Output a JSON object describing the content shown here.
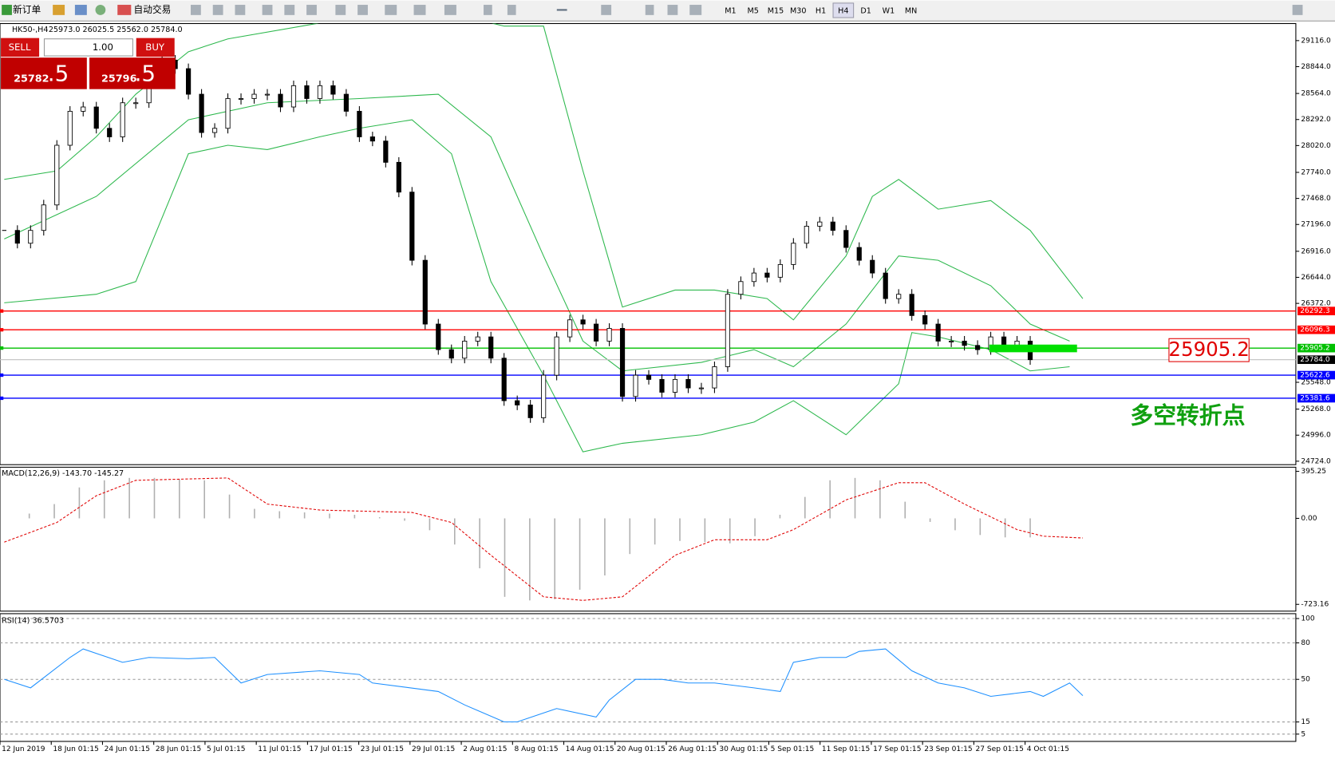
{
  "toolbar": {
    "new_order": "新订单",
    "auto_trading": "自动交易",
    "timeframes": [
      "M1",
      "M5",
      "M15",
      "M30",
      "H1",
      "H4",
      "D1",
      "W1",
      "MN"
    ]
  },
  "trade_panel": {
    "sell": "SELL",
    "buy": "BUY",
    "lots": "1.00",
    "bid_main": "25782",
    "bid_frac": ".5",
    "ask_main": "25796",
    "ask_frac": ".5"
  },
  "chart_data": [
    {
      "type": "candlestick",
      "title": "HK50-,H4",
      "subtitle": "25973.0 26025.5 25562.0 25784.0",
      "close": [
        27134,
        27000,
        27134,
        27400,
        28023,
        28378,
        28423,
        28200,
        28111,
        28467,
        28467,
        28867,
        28912,
        28823,
        28556,
        28156,
        28200,
        28511,
        28511,
        28556,
        28556,
        28423,
        28645,
        28511,
        28645,
        28556,
        28378,
        28111,
        28067,
        27845,
        27534,
        26822,
        26156,
        25889,
        25800,
        25978,
        26022,
        25800,
        25356,
        25311,
        25178,
        25622,
        26022,
        26200,
        26156,
        25978,
        26111,
        25400,
        25622,
        25578,
        25444,
        25578,
        25489,
        25489,
        25711,
        26467,
        26600,
        26689,
        26645,
        26778,
        27000,
        27178,
        27222,
        27134,
        26956,
        26822,
        26689,
        26422,
        26467,
        26245,
        26156,
        25978,
        25978,
        25933,
        25889,
        26022,
        25933,
        25978,
        25784
      ],
      "bands": [
        {
          "color": "#2db84d",
          "x": [
            0,
            4,
            7,
            10,
            14,
            17,
            24,
            34,
            38,
            41,
            44,
            47,
            51,
            54,
            58,
            60,
            64,
            66,
            68,
            71,
            75,
            78,
            82
          ],
          "values": [
            27667,
            27756,
            28111,
            28556,
            29000,
            29134,
            29300,
            29400,
            29267,
            29267,
            27756,
            26334,
            26511,
            26511,
            26422,
            26200,
            26867,
            27489,
            27667,
            27356,
            27445,
            27134,
            26422
          ]
        },
        {
          "color": "#2db84d",
          "x": [
            0,
            7,
            14,
            20,
            27,
            33,
            37,
            41,
            44,
            47,
            53,
            57,
            60,
            64,
            68,
            71,
            75,
            78,
            81
          ],
          "values": [
            27045,
            27489,
            28289,
            28467,
            28511,
            28556,
            28111,
            26867,
            25978,
            25667,
            25756,
            25889,
            25711,
            26156,
            26867,
            26822,
            26556,
            26156,
            25978
          ]
        },
        {
          "color": "#2db84d",
          "x": [
            0,
            7,
            10,
            14,
            17,
            20,
            24,
            27,
            31,
            34,
            37,
            41,
            44,
            47,
            53,
            57,
            60,
            64,
            68,
            69,
            71,
            75,
            78,
            81
          ],
          "values": [
            26378,
            26467,
            26600,
            27934,
            28023,
            27978,
            28111,
            28200,
            28289,
            27934,
            26600,
            25622,
            24822,
            24911,
            25000,
            25133,
            25356,
            25000,
            25533,
            26067,
            26022,
            25889,
            25667,
            25711
          ]
        }
      ],
      "ylim": [
        24688,
        29294
      ],
      "yticks": [
        {
          "value": 29116,
          "label": "29116.0"
        },
        {
          "value": 28844,
          "label": "28844.0"
        },
        {
          "value": 28564,
          "label": "28564.0"
        },
        {
          "value": 28292,
          "label": "28292.0"
        },
        {
          "value": 28020,
          "label": "28020.0"
        },
        {
          "value": 27740,
          "label": "27740.0"
        },
        {
          "value": 27468,
          "label": "27468.0"
        },
        {
          "value": 27196,
          "label": "27196.0"
        },
        {
          "value": 26916,
          "label": "26916.0"
        },
        {
          "value": 26644,
          "label": "26644.0"
        },
        {
          "value": 26372,
          "label": "26372.0"
        },
        {
          "value": 25548,
          "label": "25548.0"
        },
        {
          "value": 25268,
          "label": "25268.0"
        },
        {
          "value": 24996,
          "label": "24996.0"
        },
        {
          "value": 24724,
          "label": "24724.0"
        }
      ],
      "levels": [
        {
          "value": 26292.3,
          "label": "26292.3",
          "color": "#ff0000"
        },
        {
          "value": 26096.3,
          "label": "26096.3",
          "color": "#ff0000"
        },
        {
          "value": 25905.2,
          "label": "25905.2",
          "color": "#00c000"
        },
        {
          "value": 25622.6,
          "label": "25622.6",
          "color": "#0000ff"
        },
        {
          "value": 25381.6,
          "label": "25381.6",
          "color": "#0000ff"
        }
      ],
      "current": {
        "value": 25784,
        "label": "25784.0"
      },
      "annotation_price": "25905.2",
      "annotation_text": "多空转折点",
      "xlabels": [
        "12 Jun 2019",
        "18 Jun 01:15",
        "24 Jun 01:15",
        "28 Jun 01:15",
        "5 Jul 01:15",
        "11 Jul 01:15",
        "17 Jul 01:15",
        "23 Jul 01:15",
        "29 Jul 01:15",
        "2 Aug 01:15",
        "8 Aug 01:15",
        "14 Aug 01:15",
        "20 Aug 01:15",
        "26 Aug 01:15",
        "30 Aug 01:15",
        "5 Sep 01:15",
        "11 Sep 01:15",
        "17 Sep 01:15",
        "23 Sep 01:15",
        "27 Sep 01:15",
        "4 Oct 01:15"
      ]
    },
    {
      "type": "macd",
      "title": "MACD(12,26,9) -143.70 -145.27",
      "values": [
        0,
        40,
        120,
        260,
        320,
        340,
        340,
        330,
        320,
        200,
        80,
        60,
        50,
        40,
        30,
        10,
        -20,
        -100,
        -220,
        -420,
        -660,
        -690,
        -680,
        -600,
        -480,
        -300,
        -220,
        -190,
        -200,
        -210,
        -150,
        30,
        180,
        320,
        340,
        320,
        140,
        -30,
        -100,
        -140,
        -160,
        -160
      ],
      "color": "#b0b0b0",
      "signal": {
        "color": "#e00000",
        "x": [
          0,
          4,
          7,
          10,
          17,
          20,
          24,
          31,
          34,
          37,
          41,
          44,
          47,
          51,
          54,
          58,
          60,
          64,
          68,
          70,
          73,
          77,
          79,
          82
        ],
        "values": [
          -200,
          -35,
          190,
          320,
          340,
          120,
          70,
          50,
          -35,
          -310,
          -660,
          -690,
          -660,
          -310,
          -180,
          -180,
          -95,
          155,
          300,
          300,
          120,
          -95,
          -150,
          -165
        ]
      },
      "ylim": [
        -780,
        430
      ],
      "yticks": [
        395.25,
        {
          "value": 0,
          "label": "0.00"
        },
        -723.16
      ]
    },
    {
      "type": "line",
      "title": "RSI(14) 36.5703",
      "series": [
        {
          "color": "#1e90ff",
          "x": [
            0,
            2,
            5,
            6,
            9,
            11,
            14,
            16,
            18,
            20,
            24,
            27,
            28,
            33,
            35,
            38,
            39,
            42,
            45,
            46,
            48,
            50,
            52,
            54,
            57,
            59,
            60,
            62,
            64,
            65,
            67,
            69,
            71,
            73,
            75,
            78,
            79,
            81,
            82
          ],
          "values": [
            50,
            43,
            68,
            75,
            64,
            68,
            67,
            68,
            47,
            54,
            57,
            54,
            47,
            40,
            29,
            15,
            15,
            26,
            19,
            33,
            50,
            50,
            47,
            47,
            43,
            40,
            64,
            68,
            68,
            73,
            75,
            57,
            47,
            43,
            36,
            40,
            36,
            47,
            36.5703
          ]
        }
      ],
      "ylim": [
        -1,
        104
      ],
      "yticks": [
        100,
        80,
        50,
        15,
        5
      ]
    }
  ]
}
